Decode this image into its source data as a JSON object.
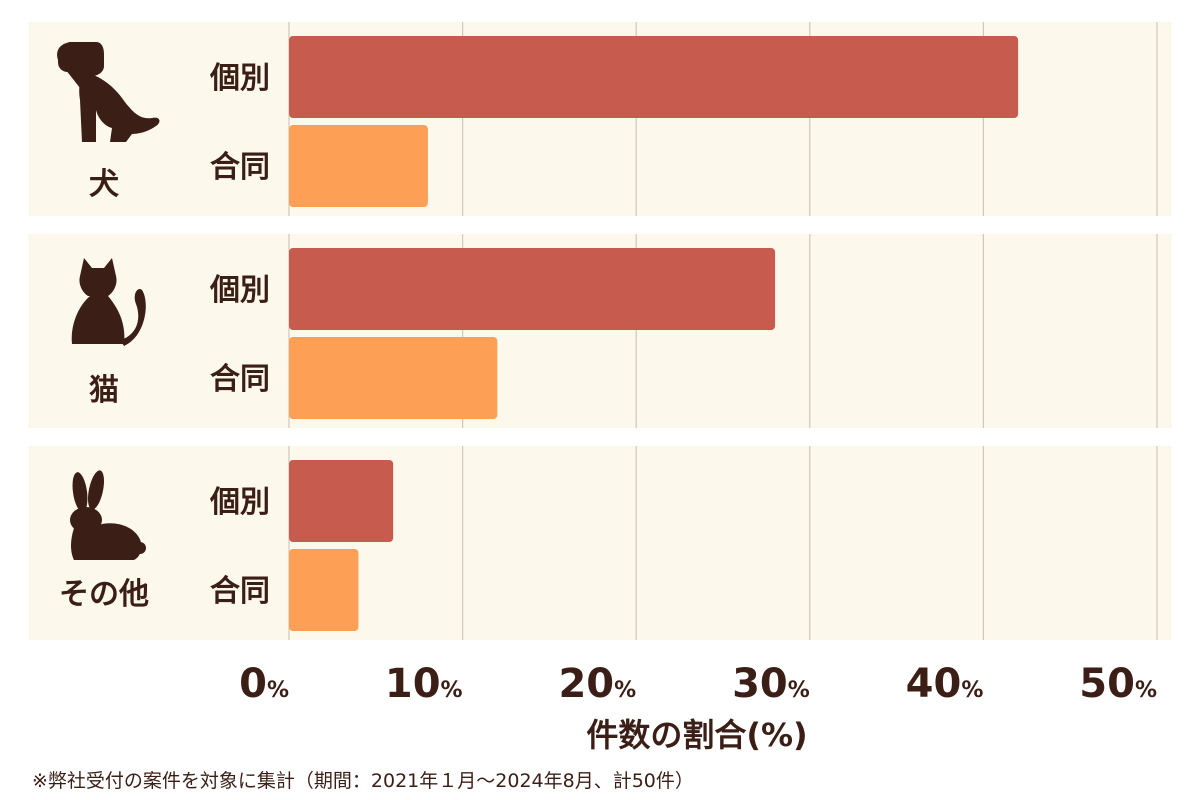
{
  "chart_data": {
    "type": "bar",
    "orientation": "horizontal",
    "xlabel": "件数の割合(%)",
    "xlim": [
      0,
      50
    ],
    "xticks": [
      0,
      10,
      20,
      30,
      40,
      50
    ],
    "tick_unit": "%",
    "grid": true,
    "groups": [
      {
        "name": "犬",
        "icon": "dog-icon",
        "rows": [
          {
            "label": "個別",
            "value": 42
          },
          {
            "label": "合同",
            "value": 8
          }
        ]
      },
      {
        "name": "猫",
        "icon": "cat-icon",
        "rows": [
          {
            "label": "個別",
            "value": 28
          },
          {
            "label": "合同",
            "value": 12
          }
        ]
      },
      {
        "name": "その他",
        "icon": "rabbit-icon",
        "rows": [
          {
            "label": "個別",
            "value": 6
          },
          {
            "label": "合同",
            "value": 4
          }
        ]
      }
    ],
    "colors": {
      "個別": "#c65b4e",
      "合同": "#fd9f55",
      "panel": "#fdf8ec",
      "grid": "#cfc8bc",
      "text": "#3b1f16"
    }
  },
  "footnote": "※弊社受付の案件を対象に集計（期間：2021年１月〜2024年8月、計50件）"
}
